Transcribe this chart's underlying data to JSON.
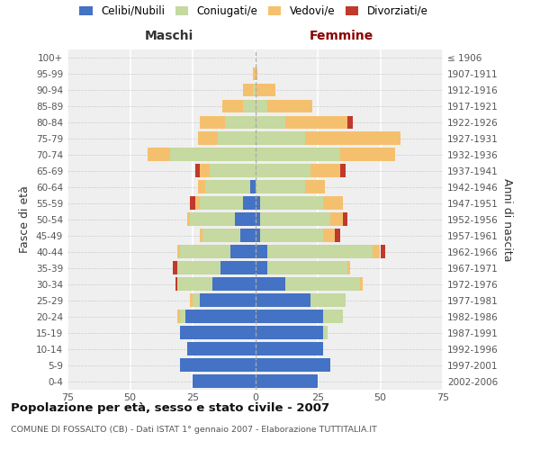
{
  "age_groups": [
    "0-4",
    "5-9",
    "10-14",
    "15-19",
    "20-24",
    "25-29",
    "30-34",
    "35-39",
    "40-44",
    "45-49",
    "50-54",
    "55-59",
    "60-64",
    "65-69",
    "70-74",
    "75-79",
    "80-84",
    "85-89",
    "90-94",
    "95-99",
    "100+"
  ],
  "birth_years": [
    "2002-2006",
    "1997-2001",
    "1992-1996",
    "1987-1991",
    "1982-1986",
    "1977-1981",
    "1972-1976",
    "1967-1971",
    "1962-1966",
    "1957-1961",
    "1952-1956",
    "1947-1951",
    "1942-1946",
    "1937-1941",
    "1932-1936",
    "1927-1931",
    "1922-1926",
    "1917-1921",
    "1912-1916",
    "1907-1911",
    "≤ 1906"
  ],
  "maschi": {
    "celibi": [
      25,
      30,
      27,
      30,
      28,
      22,
      17,
      14,
      10,
      6,
      8,
      5,
      2,
      0,
      0,
      0,
      0,
      0,
      0,
      0,
      0
    ],
    "coniugati": [
      0,
      0,
      0,
      0,
      2,
      3,
      14,
      17,
      20,
      15,
      18,
      17,
      18,
      18,
      34,
      15,
      12,
      5,
      1,
      0,
      0
    ],
    "vedovi": [
      0,
      0,
      0,
      0,
      1,
      1,
      0,
      0,
      1,
      1,
      1,
      2,
      3,
      4,
      9,
      8,
      10,
      8,
      4,
      1,
      0
    ],
    "divorziati": [
      0,
      0,
      0,
      0,
      0,
      0,
      1,
      2,
      0,
      0,
      0,
      2,
      0,
      2,
      0,
      0,
      0,
      0,
      0,
      0,
      0
    ]
  },
  "femmine": {
    "nubili": [
      25,
      30,
      27,
      27,
      27,
      22,
      12,
      5,
      5,
      2,
      2,
      2,
      0,
      0,
      0,
      0,
      0,
      0,
      0,
      0,
      0
    ],
    "coniugate": [
      0,
      0,
      0,
      2,
      8,
      14,
      30,
      32,
      42,
      25,
      28,
      25,
      20,
      22,
      34,
      20,
      12,
      5,
      0,
      0,
      0
    ],
    "vedove": [
      0,
      0,
      0,
      0,
      0,
      0,
      1,
      1,
      3,
      5,
      5,
      8,
      8,
      12,
      22,
      38,
      25,
      18,
      8,
      1,
      0
    ],
    "divorziate": [
      0,
      0,
      0,
      0,
      0,
      0,
      0,
      0,
      2,
      2,
      2,
      0,
      0,
      2,
      0,
      0,
      2,
      0,
      0,
      0,
      0
    ]
  },
  "color_celibi": "#4472c4",
  "color_coniugati": "#c5d9a0",
  "color_vedovi": "#f5c06e",
  "color_divorziati": "#c0392b",
  "title": "Popolazione per età, sesso e stato civile - 2007",
  "subtitle": "COMUNE DI FOSSALTO (CB) - Dati ISTAT 1° gennaio 2007 - Elaborazione TUTTITALIA.IT",
  "header_left": "Maschi",
  "header_right": "Femmine",
  "ylabel_left": "Fasce di età",
  "ylabel_right": "Anni di nascita",
  "xlim": 75,
  "bg_color": "#efefef",
  "bar_height": 0.82
}
